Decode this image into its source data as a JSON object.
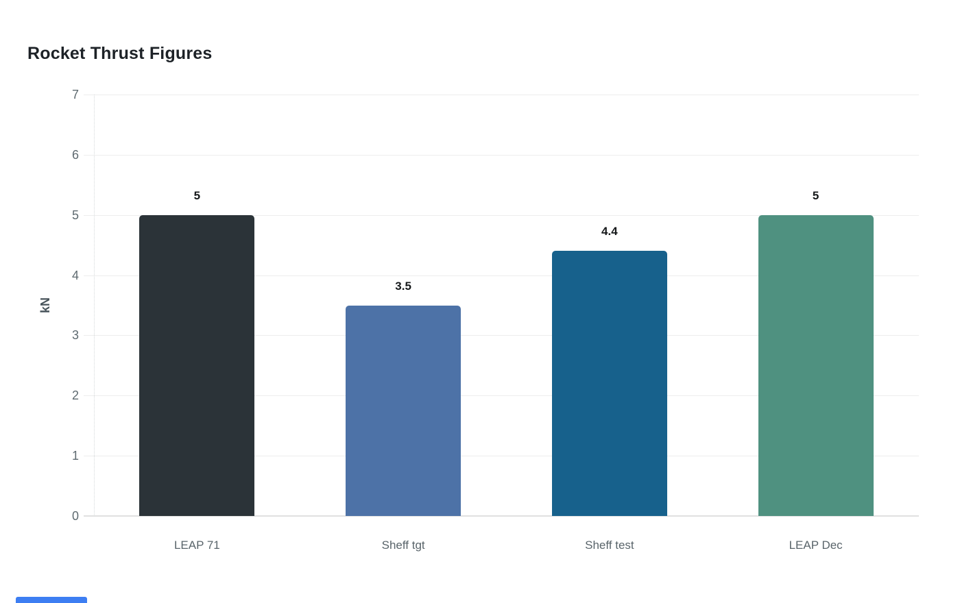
{
  "page": {
    "background": "#ffffff"
  },
  "chart_data": {
    "type": "bar",
    "title": "Rocket Thrust Figures",
    "categories": [
      "LEAP 71",
      "Sheff tgt",
      "Sheff test",
      "LEAP Dec"
    ],
    "values": [
      5,
      3.5,
      4.4,
      5
    ],
    "value_labels": [
      "5",
      "3.5",
      "4.4",
      "5"
    ],
    "bar_colors": [
      "#2b3338",
      "#4d72a7",
      "#17618c",
      "#4f9180"
    ],
    "xlabel": "",
    "ylabel": "kN",
    "ylim": [
      0,
      7
    ],
    "yticks": [
      "0",
      "1",
      "2",
      "3",
      "4",
      "5",
      "6",
      "7"
    ],
    "grid": true,
    "legend": false,
    "gridline_color": "#ededed",
    "axis_text_color": "#5e6a70",
    "title_color": "#1d2227",
    "value_label_color": "#15181a"
  },
  "footer": {
    "partial_blue_bar_color": "#3d7ef2"
  }
}
